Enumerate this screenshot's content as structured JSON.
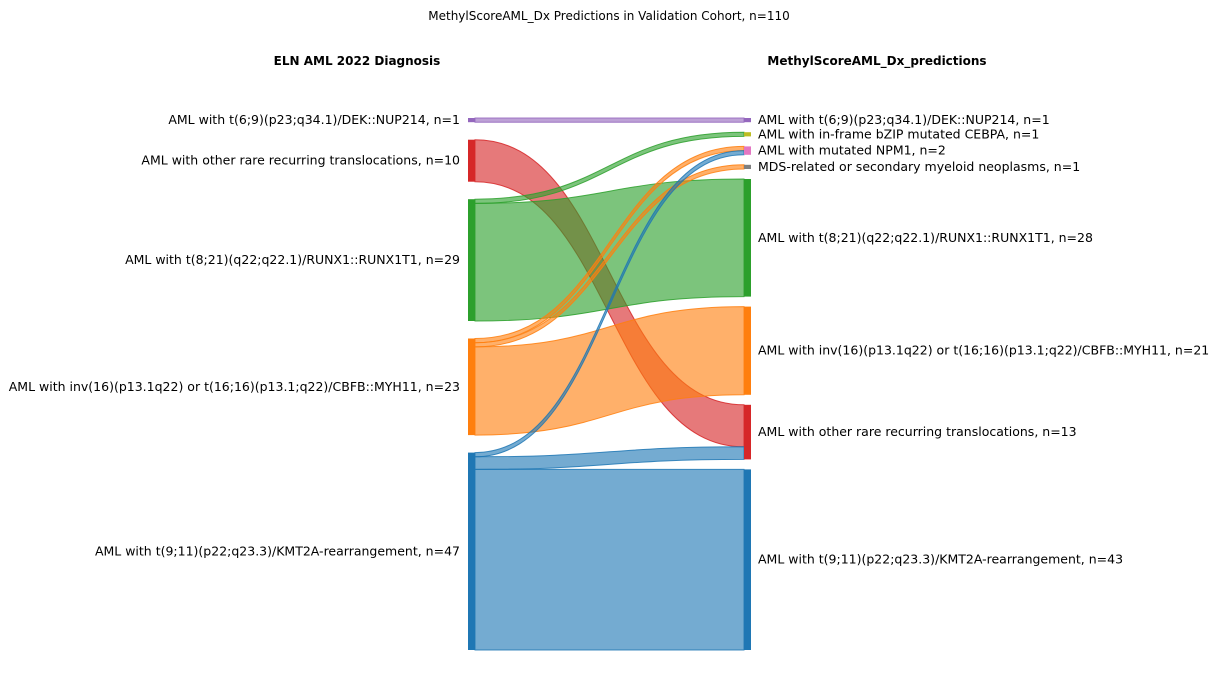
{
  "title": "MethylScoreAML_Dx Predictions in Validation Cohort, n=110",
  "left_header": "ELN AML 2022 Diagnosis",
  "right_header": "MethylScoreAML_Dx_predictions",
  "colors": {
    "dek": "#9467bd",
    "rare": "#d62728",
    "runx1": "#2ca02c",
    "cbfb": "#ff7f0e",
    "kmt2a": "#1f77b4",
    "cebpa": "#bcbd22",
    "npm1": "#e377c2",
    "mds": "#7f7f7f"
  },
  "chart_data": {
    "type": "sankey",
    "left_nodes": [
      {
        "id": "dek",
        "label": "AML with t(6;9)(p23;q34.1)/DEK::NUP214, n=1",
        "value": 1,
        "color": "dek"
      },
      {
        "id": "rare",
        "label": "AML with other rare recurring translocations, n=10",
        "value": 10,
        "color": "rare"
      },
      {
        "id": "runx1",
        "label": "AML with t(8;21)(q22;q22.1)/RUNX1::RUNX1T1, n=29",
        "value": 29,
        "color": "runx1"
      },
      {
        "id": "cbfb",
        "label": "AML with inv(16)(p13.1q22) or t(16;16)(p13.1;q22)/CBFB::MYH11, n=23",
        "value": 23,
        "color": "cbfb"
      },
      {
        "id": "kmt2a",
        "label": "AML with t(9;11)(p22;q23.3)/KMT2A-rearrangement, n=47",
        "value": 47,
        "color": "kmt2a"
      }
    ],
    "right_nodes": [
      {
        "id": "dek",
        "label": "AML with t(6;9)(p23;q34.1)/DEK::NUP214, n=1",
        "value": 1,
        "color": "dek"
      },
      {
        "id": "cebpa",
        "label": "AML with in-frame bZIP mutated CEBPA, n=1",
        "value": 1,
        "color": "cebpa"
      },
      {
        "id": "npm1",
        "label": "AML with mutated NPM1, n=2",
        "value": 2,
        "color": "npm1"
      },
      {
        "id": "mds",
        "label": "MDS-related or secondary myeloid neoplasms, n=1",
        "value": 1,
        "color": "mds"
      },
      {
        "id": "runx1",
        "label": "AML with t(8;21)(q22;q22.1)/RUNX1::RUNX1T1, n=28",
        "value": 28,
        "color": "runx1"
      },
      {
        "id": "cbfb",
        "label": "AML with inv(16)(p13.1q22) or t(16;16)(p13.1;q22)/CBFB::MYH11, n=21",
        "value": 21,
        "color": "cbfb"
      },
      {
        "id": "rare",
        "label": "AML with other rare recurring translocations, n=13",
        "value": 13,
        "color": "rare"
      },
      {
        "id": "kmt2a",
        "label": "AML with t(9;11)(p22;q23.3)/KMT2A-rearrangement, n=43",
        "value": 43,
        "color": "kmt2a"
      }
    ],
    "flows": [
      {
        "from": "dek",
        "to": "dek",
        "value": 1
      },
      {
        "from": "rare",
        "to": "rare",
        "value": 10
      },
      {
        "from": "runx1",
        "to": "cebpa",
        "value": 1
      },
      {
        "from": "runx1",
        "to": "runx1",
        "value": 28
      },
      {
        "from": "cbfb",
        "to": "npm1",
        "value": 1
      },
      {
        "from": "cbfb",
        "to": "mds",
        "value": 1
      },
      {
        "from": "cbfb",
        "to": "cbfb",
        "value": 21
      },
      {
        "from": "kmt2a",
        "to": "npm1",
        "value": 1
      },
      {
        "from": "kmt2a",
        "to": "rare",
        "value": 3
      },
      {
        "from": "kmt2a",
        "to": "kmt2a",
        "value": 43
      }
    ]
  }
}
